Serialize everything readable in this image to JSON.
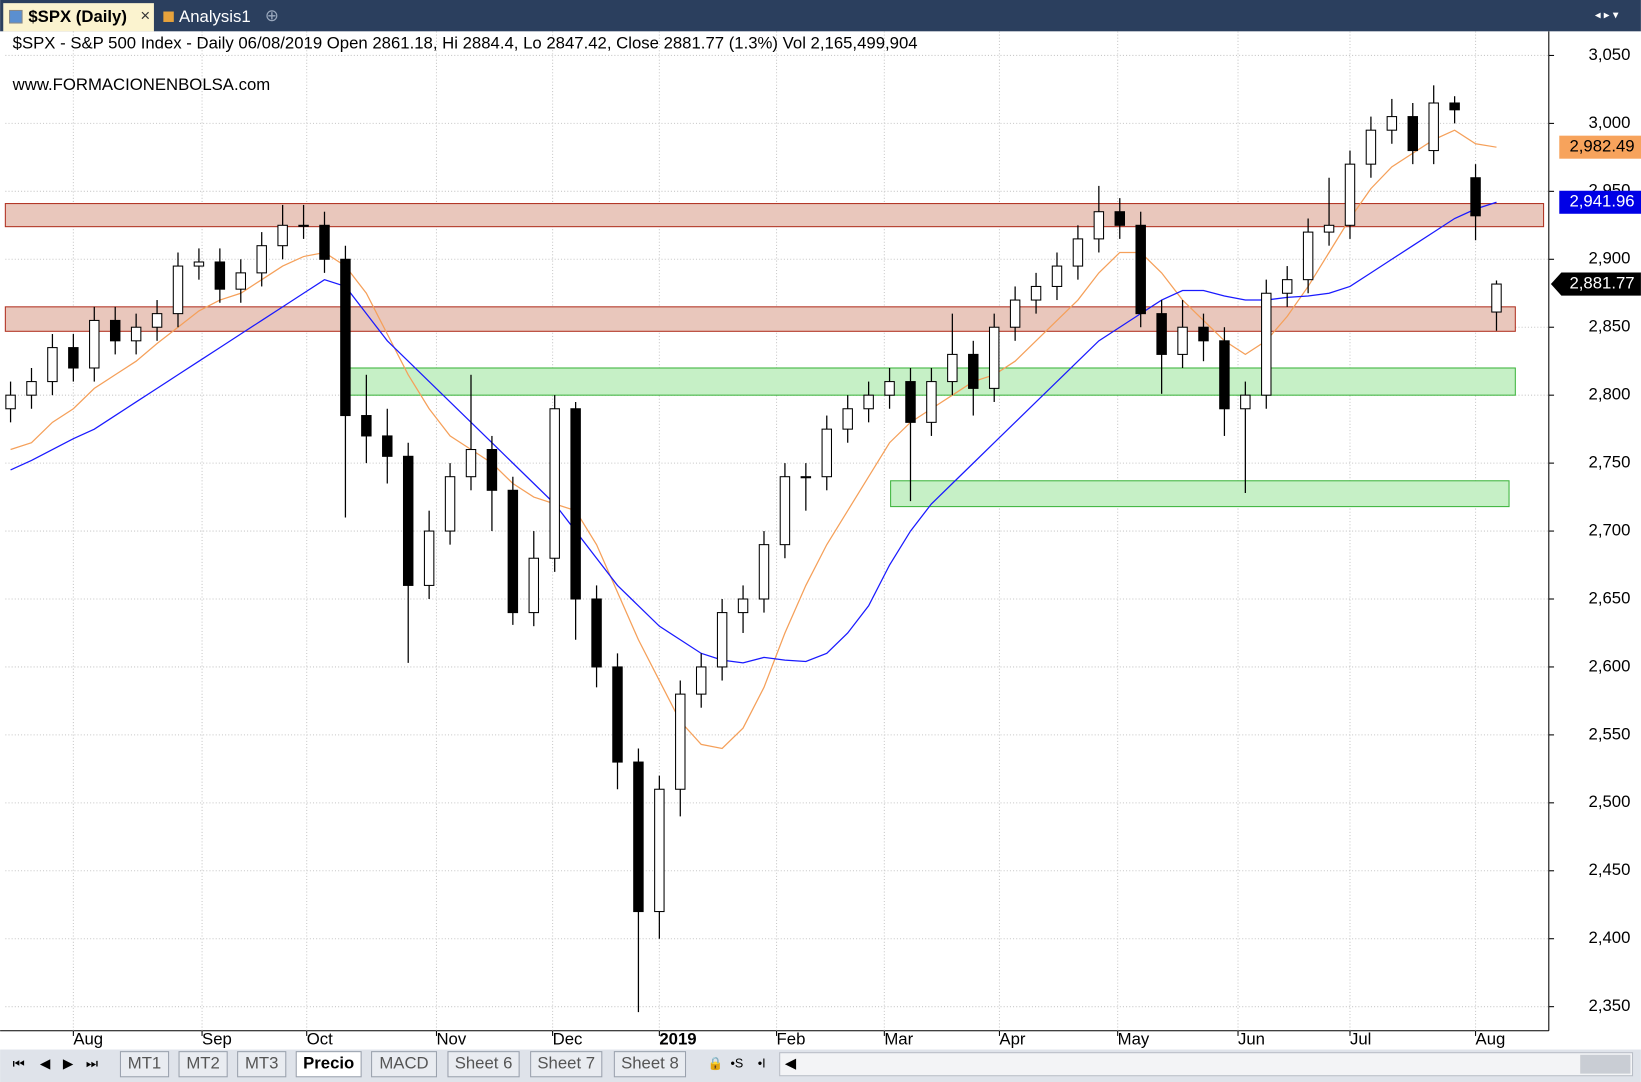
{
  "tabs": {
    "active": "$SPX (Daily)",
    "other": "Analysis1"
  },
  "sheet_tabs": [
    "MT1",
    "MT2",
    "MT3",
    "Precio",
    "MACD",
    "Sheet 6",
    "Sheet 7",
    "Sheet 8"
  ],
  "chart_data": {
    "type": "candlestick",
    "title": "$SPX - S&P 500 Index - Daily 06/08/2019 Open 2861.18, Hi 2884.4, Lo 2847.42, Close 2881.77 (1.3%) Vol 2,165,499,904",
    "subtitle": "www.FORMACIONENBOLSA.com",
    "open": [
      2790,
      2800,
      2810,
      2835,
      2820,
      2855,
      2840,
      2850,
      2860,
      2895,
      2898,
      2878,
      2890,
      2910,
      2925,
      2925,
      2900,
      2785,
      2770,
      2755,
      2660,
      2700,
      2740,
      2760,
      2730,
      2640,
      2680,
      2790,
      2650,
      2600,
      2530,
      2420,
      2510,
      2580,
      2600,
      2640,
      2650,
      2690,
      2740,
      2740,
      2775,
      2790,
      2800,
      2810,
      2780,
      2810,
      2830,
      2805,
      2850,
      2870,
      2880,
      2895,
      2915,
      2935,
      2925,
      2860,
      2830,
      2850,
      2840,
      2790,
      2800,
      2875,
      2885,
      2920,
      2925,
      2970,
      2995,
      3005,
      2980,
      3015,
      2960,
      2861.18
    ],
    "high": [
      2810,
      2820,
      2845,
      2845,
      2865,
      2865,
      2860,
      2870,
      2905,
      2908,
      2908,
      2900,
      2920,
      2940,
      2940,
      2935,
      2910,
      2815,
      2790,
      2765,
      2715,
      2750,
      2815,
      2770,
      2740,
      2700,
      2800,
      2795,
      2660,
      2610,
      2540,
      2520,
      2590,
      2610,
      2650,
      2660,
      2700,
      2750,
      2750,
      2785,
      2800,
      2810,
      2820,
      2820,
      2820,
      2860,
      2840,
      2860,
      2880,
      2890,
      2905,
      2925,
      2954,
      2945,
      2935,
      2870,
      2870,
      2860,
      2850,
      2810,
      2885,
      2895,
      2930,
      2960,
      2980,
      3005,
      3018,
      3015,
      3028,
      3020,
      2970,
      2884.4
    ],
    "low": [
      2780,
      2790,
      2800,
      2810,
      2810,
      2830,
      2830,
      2840,
      2850,
      2885,
      2868,
      2868,
      2880,
      2900,
      2915,
      2890,
      2710,
      2750,
      2735,
      2603,
      2650,
      2690,
      2730,
      2700,
      2631,
      2630,
      2670,
      2620,
      2585,
      2510,
      2346,
      2400,
      2490,
      2570,
      2590,
      2625,
      2640,
      2680,
      2715,
      2730,
      2765,
      2780,
      2790,
      2722,
      2770,
      2800,
      2785,
      2795,
      2840,
      2860,
      2870,
      2885,
      2905,
      2915,
      2850,
      2801,
      2820,
      2825,
      2770,
      2728,
      2790,
      2865,
      2875,
      2910,
      2915,
      2960,
      2985,
      2970,
      2970,
      3000,
      2914,
      2847.42
    ],
    "close": [
      2800,
      2810,
      2835,
      2820,
      2855,
      2840,
      2850,
      2860,
      2895,
      2898,
      2878,
      2890,
      2910,
      2925,
      2925,
      2900,
      2785,
      2770,
      2755,
      2660,
      2700,
      2740,
      2760,
      2730,
      2640,
      2680,
      2790,
      2650,
      2600,
      2530,
      2420,
      2510,
      2580,
      2600,
      2640,
      2650,
      2690,
      2740,
      2740,
      2775,
      2790,
      2800,
      2810,
      2780,
      2810,
      2830,
      2805,
      2850,
      2870,
      2880,
      2895,
      2915,
      2935,
      2925,
      2860,
      2830,
      2850,
      2840,
      2790,
      2800,
      2875,
      2885,
      2920,
      2925,
      2970,
      2995,
      3005,
      2980,
      3015,
      3010,
      2932,
      2881.77
    ],
    "color_up": "#ffffff",
    "color_down": "#000000",
    "series": [
      {
        "color": "#f5a05a",
        "values": [
          2760,
          2765,
          2780,
          2790,
          2805,
          2815,
          2825,
          2838,
          2850,
          2862,
          2870,
          2875,
          2885,
          2895,
          2902,
          2905,
          2895,
          2875,
          2845,
          2815,
          2790,
          2770,
          2760,
          2750,
          2735,
          2725,
          2720,
          2715,
          2690,
          2655,
          2620,
          2590,
          2560,
          2543,
          2540,
          2555,
          2585,
          2625,
          2660,
          2690,
          2715,
          2740,
          2765,
          2780,
          2790,
          2800,
          2810,
          2815,
          2825,
          2840,
          2855,
          2870,
          2890,
          2905,
          2905,
          2890,
          2870,
          2855,
          2840,
          2830,
          2840,
          2858,
          2880,
          2905,
          2930,
          2952,
          2968,
          2978,
          2988,
          2995,
          2985,
          2982.49
        ]
      },
      {
        "color": "#1a1aff",
        "values": [
          2745,
          2752,
          2760,
          2768,
          2775,
          2785,
          2795,
          2805,
          2815,
          2825,
          2835,
          2845,
          2855,
          2865,
          2875,
          2885,
          2880,
          2860,
          2840,
          2825,
          2810,
          2795,
          2780,
          2765,
          2750,
          2735,
          2720,
          2700,
          2680,
          2660,
          2645,
          2630,
          2620,
          2610,
          2605,
          2603,
          2607,
          2605,
          2604,
          2610,
          2625,
          2645,
          2675,
          2700,
          2720,
          2735,
          2750,
          2765,
          2780,
          2795,
          2810,
          2825,
          2840,
          2850,
          2860,
          2870,
          2877,
          2877,
          2873,
          2870,
          2870,
          2872,
          2873,
          2875,
          2880,
          2890,
          2900,
          2910,
          2920,
          2930,
          2937,
          2941.96
        ]
      }
    ],
    "zones": [
      {
        "ylim": [
          2924,
          2941
        ],
        "x": [
          -0.25,
          73.25
        ],
        "color": "#e9c7bc"
      },
      {
        "ylim": [
          2847,
          2865
        ],
        "x": [
          -0.25,
          71.9
        ],
        "color": "#e9c7bc"
      },
      {
        "ylim": [
          2800,
          2820
        ],
        "x": [
          16.2,
          71.9
        ],
        "color": "#c6f0c6"
      },
      {
        "ylim": [
          2718,
          2737
        ],
        "x": [
          42.05,
          71.6
        ],
        "color": "#c6f0c6"
      }
    ],
    "price_tags": [
      {
        "value": 2982.49,
        "label": "2,982.49",
        "color": "#f7a35c"
      },
      {
        "value": 2941.96,
        "label": "2,941.96",
        "color": "#0000e6"
      },
      {
        "value": 2881.77,
        "label": "2,881.77",
        "color": "#000000"
      }
    ],
    "xlim": [
      -0.25,
      73.5
    ],
    "ylim": [
      2332.3,
      3067.7
    ],
    "xticks": [
      {
        "value": 3,
        "label": "Aug"
      },
      {
        "value": 9.15,
        "label": "Sep"
      },
      {
        "value": 14.15,
        "label": "Oct"
      },
      {
        "value": 20.35,
        "label": "Nov"
      },
      {
        "value": 25.9,
        "label": "Dec"
      },
      {
        "value": 31,
        "label": "2019",
        "bold": true
      },
      {
        "value": 36.6,
        "label": "Feb"
      },
      {
        "value": 41.75,
        "label": "Mar"
      },
      {
        "value": 47.25,
        "label": "Apr"
      },
      {
        "value": 52.9,
        "label": "May"
      },
      {
        "value": 58.65,
        "label": "Jun"
      },
      {
        "value": 64,
        "label": "Jul"
      },
      {
        "value": 70,
        "label": "Aug"
      }
    ],
    "yticks": [
      {
        "value": 2350,
        "label": "2,350"
      },
      {
        "value": 2400,
        "label": "2,400"
      },
      {
        "value": 2450,
        "label": "2,450"
      },
      {
        "value": 2500,
        "label": "2,500"
      },
      {
        "value": 2550,
        "label": "2,550"
      },
      {
        "value": 2600,
        "label": "2,600"
      },
      {
        "value": 2650,
        "label": "2,650"
      },
      {
        "value": 2700,
        "label": "2,700"
      },
      {
        "value": 2750,
        "label": "2,750"
      },
      {
        "value": 2800,
        "label": "2,800"
      },
      {
        "value": 2850,
        "label": "2,850"
      },
      {
        "value": 2900,
        "label": "2,900"
      },
      {
        "value": 2950,
        "label": "2,950"
      },
      {
        "value": 3000,
        "label": "3,000"
      },
      {
        "value": 3050,
        "label": "3,050"
      }
    ],
    "grid": true
  }
}
